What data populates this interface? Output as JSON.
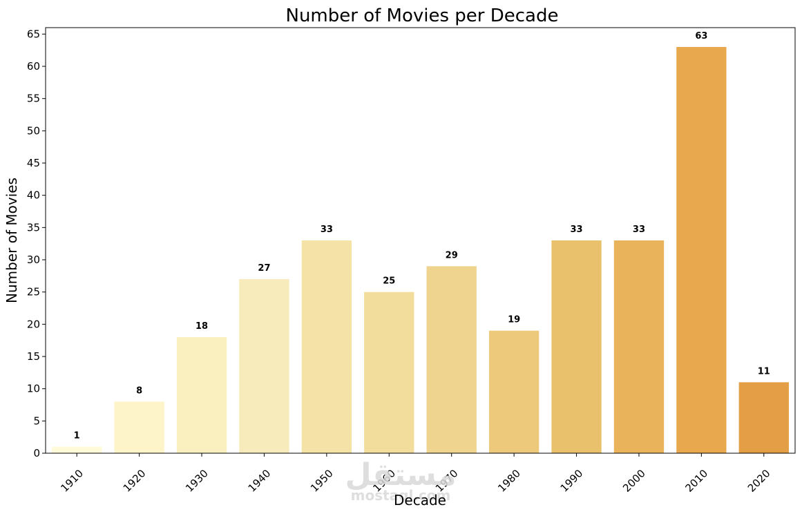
{
  "chart_data": {
    "type": "bar",
    "title": "Number of Movies per Decade",
    "xlabel": "Decade",
    "ylabel": "Number of Movies",
    "categories": [
      "1910",
      "1920",
      "1930",
      "1940",
      "1950",
      "1960",
      "1970",
      "1980",
      "1990",
      "2000",
      "2010",
      "2020"
    ],
    "values": [
      1,
      8,
      18,
      27,
      33,
      25,
      29,
      19,
      33,
      33,
      63,
      11
    ],
    "ylim": [
      0,
      66
    ],
    "yticks": [
      0,
      5,
      10,
      15,
      20,
      25,
      30,
      35,
      40,
      45,
      50,
      55,
      60,
      65
    ],
    "grid": false,
    "legend": "none",
    "colors": [
      "#fffbd9",
      "#fdf4c9",
      "#faf0bf",
      "#f8ebbb",
      "#f5e2a6",
      "#f2dd9d",
      "#eed48f",
      "#edc97b",
      "#e9c06c",
      "#e9b35c",
      "#e8a84e",
      "#e49e46"
    ]
  },
  "watermark": {
    "brand": "مستقل",
    "domain": "mostaql.com"
  }
}
